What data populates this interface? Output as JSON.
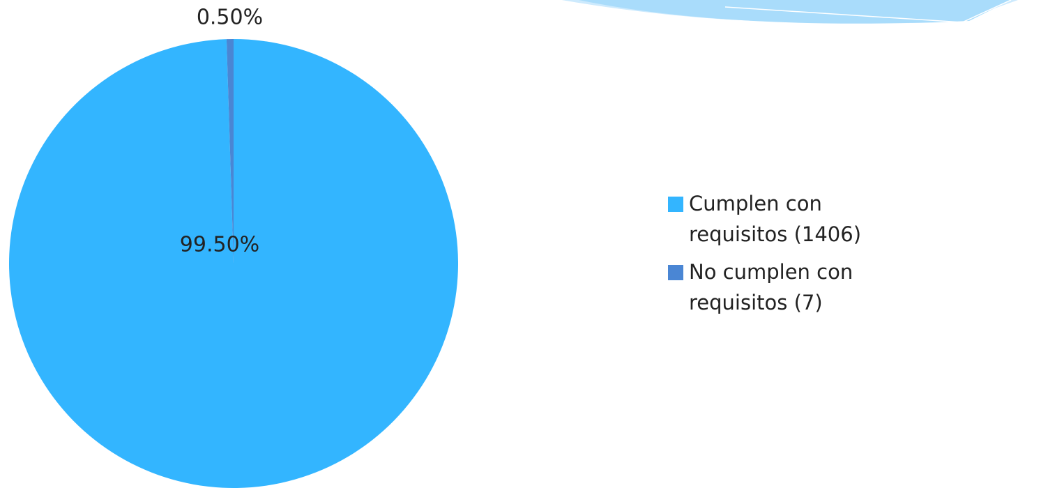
{
  "chart_data": {
    "type": "pie",
    "categories": [
      "Cumplen con requisitos (1406)",
      "No cumplen con requisitos (7)"
    ],
    "values": [
      99.5,
      0.5
    ],
    "value_labels": [
      "99.50%",
      "0.50%"
    ],
    "colors": [
      "#33b5ff",
      "#4a86d4"
    ]
  }
}
